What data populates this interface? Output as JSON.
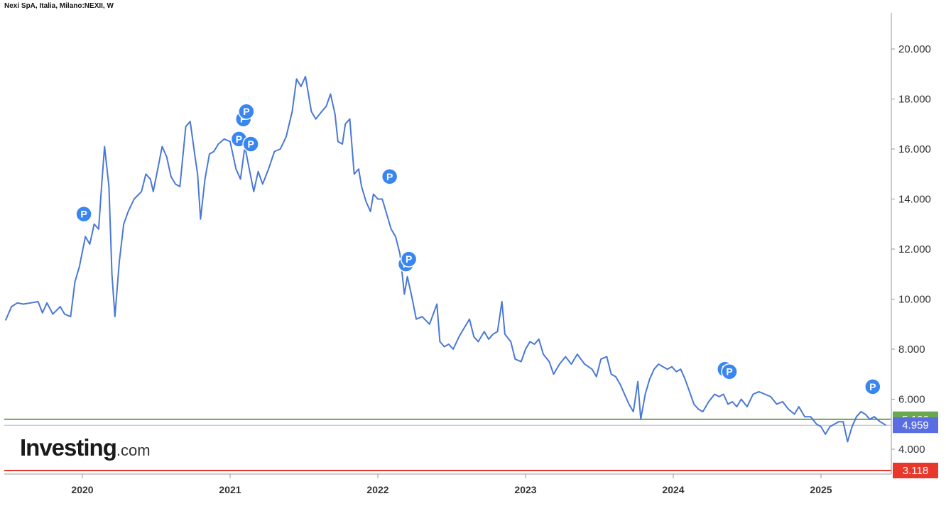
{
  "header": {
    "title": "Nexi SpA, Italia, Milano:NEXII, W"
  },
  "logo": {
    "main": "Investing",
    "suffix": ".com"
  },
  "colors": {
    "line": "#4a78d6",
    "green": "#6aa84f",
    "red": "#e8382c",
    "blue_badge": "#5b6ee1",
    "marker": "#3a86f0"
  },
  "chart_data": {
    "type": "line",
    "title": "Nexi SpA, Italia, Milano:NEXII, W",
    "xlabel": "",
    "ylabel": "",
    "x_ticks": [
      "2020",
      "2021",
      "2022",
      "2023",
      "2024",
      "2025"
    ],
    "y_ticks": [
      "4.000",
      "6.000",
      "8.000",
      "10.000",
      "12.000",
      "14.000",
      "16.000",
      "18.000",
      "20.000"
    ],
    "ylim": [
      3.0,
      21.3
    ],
    "xlim": [
      2019.48,
      2025.5
    ],
    "grid": false,
    "series": [
      {
        "values": [
          [
            2019.48,
            9.15
          ],
          [
            2019.52,
            9.7
          ],
          [
            2019.56,
            9.85
          ],
          [
            2019.6,
            9.8
          ],
          [
            2019.65,
            9.85
          ],
          [
            2019.7,
            9.9
          ],
          [
            2019.73,
            9.45
          ],
          [
            2019.76,
            9.85
          ],
          [
            2019.8,
            9.4
          ],
          [
            2019.85,
            9.7
          ],
          [
            2019.88,
            9.4
          ],
          [
            2019.92,
            9.3
          ],
          [
            2019.95,
            10.7
          ],
          [
            2019.98,
            11.3
          ],
          [
            2020.02,
            12.5
          ],
          [
            2020.05,
            12.2
          ],
          [
            2020.08,
            13.0
          ],
          [
            2020.11,
            12.8
          ],
          [
            2020.13,
            14.5
          ],
          [
            2020.15,
            16.1
          ],
          [
            2020.18,
            14.5
          ],
          [
            2020.2,
            11.0
          ],
          [
            2020.22,
            9.3
          ],
          [
            2020.25,
            11.5
          ],
          [
            2020.28,
            13.0
          ],
          [
            2020.31,
            13.5
          ],
          [
            2020.35,
            14.0
          ],
          [
            2020.4,
            14.3
          ],
          [
            2020.43,
            15.0
          ],
          [
            2020.46,
            14.8
          ],
          [
            2020.48,
            14.3
          ],
          [
            2020.51,
            15.2
          ],
          [
            2020.54,
            16.1
          ],
          [
            2020.57,
            15.7
          ],
          [
            2020.6,
            14.9
          ],
          [
            2020.63,
            14.6
          ],
          [
            2020.66,
            14.5
          ],
          [
            2020.7,
            16.9
          ],
          [
            2020.73,
            17.1
          ],
          [
            2020.76,
            15.8
          ],
          [
            2020.78,
            15.0
          ],
          [
            2020.8,
            13.2
          ],
          [
            2020.83,
            14.8
          ],
          [
            2020.86,
            15.8
          ],
          [
            2020.89,
            15.9
          ],
          [
            2020.92,
            16.2
          ],
          [
            2020.96,
            16.4
          ],
          [
            2021.0,
            16.3
          ],
          [
            2021.04,
            15.2
          ],
          [
            2021.07,
            14.8
          ],
          [
            2021.1,
            16.1
          ],
          [
            2021.13,
            15.2
          ],
          [
            2021.16,
            14.3
          ],
          [
            2021.19,
            15.1
          ],
          [
            2021.22,
            14.6
          ],
          [
            2021.26,
            15.2
          ],
          [
            2021.3,
            15.9
          ],
          [
            2021.34,
            16.0
          ],
          [
            2021.38,
            16.5
          ],
          [
            2021.42,
            17.5
          ],
          [
            2021.45,
            18.8
          ],
          [
            2021.48,
            18.5
          ],
          [
            2021.51,
            18.9
          ],
          [
            2021.55,
            17.5
          ],
          [
            2021.58,
            17.2
          ],
          [
            2021.62,
            17.5
          ],
          [
            2021.65,
            17.7
          ],
          [
            2021.68,
            18.2
          ],
          [
            2021.71,
            17.4
          ],
          [
            2021.73,
            16.3
          ],
          [
            2021.76,
            16.2
          ],
          [
            2021.78,
            17.0
          ],
          [
            2021.81,
            17.2
          ],
          [
            2021.84,
            15.0
          ],
          [
            2021.87,
            15.2
          ],
          [
            2021.89,
            14.5
          ],
          [
            2021.92,
            13.9
          ],
          [
            2021.95,
            13.5
          ],
          [
            2021.97,
            14.2
          ],
          [
            2022.0,
            14.0
          ],
          [
            2022.03,
            14.0
          ],
          [
            2022.06,
            13.4
          ],
          [
            2022.09,
            12.8
          ],
          [
            2022.12,
            12.5
          ],
          [
            2022.15,
            11.8
          ],
          [
            2022.18,
            10.2
          ],
          [
            2022.2,
            10.9
          ],
          [
            2022.23,
            10.1
          ],
          [
            2022.26,
            9.2
          ],
          [
            2022.3,
            9.3
          ],
          [
            2022.35,
            9.0
          ],
          [
            2022.4,
            9.8
          ],
          [
            2022.42,
            8.3
          ],
          [
            2022.45,
            8.1
          ],
          [
            2022.48,
            8.2
          ],
          [
            2022.51,
            8.0
          ],
          [
            2022.55,
            8.5
          ],
          [
            2022.58,
            8.8
          ],
          [
            2022.62,
            9.2
          ],
          [
            2022.65,
            8.5
          ],
          [
            2022.68,
            8.3
          ],
          [
            2022.72,
            8.7
          ],
          [
            2022.75,
            8.4
          ],
          [
            2022.78,
            8.6
          ],
          [
            2022.81,
            8.7
          ],
          [
            2022.84,
            9.9
          ],
          [
            2022.86,
            8.6
          ],
          [
            2022.9,
            8.3
          ],
          [
            2022.93,
            7.6
          ],
          [
            2022.97,
            7.5
          ],
          [
            2023.0,
            8.0
          ],
          [
            2023.03,
            8.3
          ],
          [
            2023.06,
            8.2
          ],
          [
            2023.09,
            8.4
          ],
          [
            2023.12,
            7.8
          ],
          [
            2023.16,
            7.5
          ],
          [
            2023.19,
            7.0
          ],
          [
            2023.23,
            7.4
          ],
          [
            2023.27,
            7.7
          ],
          [
            2023.31,
            7.4
          ],
          [
            2023.35,
            7.8
          ],
          [
            2023.4,
            7.4
          ],
          [
            2023.45,
            7.2
          ],
          [
            2023.48,
            6.9
          ],
          [
            2023.51,
            7.6
          ],
          [
            2023.55,
            7.7
          ],
          [
            2023.58,
            7.0
          ],
          [
            2023.61,
            6.9
          ],
          [
            2023.64,
            6.6
          ],
          [
            2023.67,
            6.2
          ],
          [
            2023.7,
            5.8
          ],
          [
            2023.73,
            5.5
          ],
          [
            2023.76,
            6.7
          ],
          [
            2023.78,
            5.2
          ],
          [
            2023.81,
            6.2
          ],
          [
            2023.84,
            6.8
          ],
          [
            2023.87,
            7.2
          ],
          [
            2023.9,
            7.4
          ],
          [
            2023.93,
            7.3
          ],
          [
            2023.96,
            7.2
          ],
          [
            2023.99,
            7.3
          ],
          [
            2024.02,
            7.1
          ],
          [
            2024.05,
            7.2
          ],
          [
            2024.08,
            6.8
          ],
          [
            2024.11,
            6.3
          ],
          [
            2024.14,
            5.8
          ],
          [
            2024.17,
            5.6
          ],
          [
            2024.2,
            5.5
          ],
          [
            2024.24,
            5.9
          ],
          [
            2024.28,
            6.2
          ],
          [
            2024.31,
            6.1
          ],
          [
            2024.34,
            6.2
          ],
          [
            2024.37,
            5.8
          ],
          [
            2024.4,
            5.9
          ],
          [
            2024.43,
            5.7
          ],
          [
            2024.46,
            6.0
          ],
          [
            2024.5,
            5.7
          ],
          [
            2024.54,
            6.2
          ],
          [
            2024.58,
            6.3
          ],
          [
            2024.62,
            6.2
          ],
          [
            2024.66,
            6.1
          ],
          [
            2024.7,
            5.8
          ],
          [
            2024.74,
            5.9
          ],
          [
            2024.78,
            5.6
          ],
          [
            2024.82,
            5.4
          ],
          [
            2024.85,
            5.7
          ],
          [
            2024.89,
            5.3
          ],
          [
            2024.93,
            5.3
          ],
          [
            2024.97,
            5.0
          ],
          [
            2025.0,
            4.9
          ],
          [
            2025.03,
            4.6
          ],
          [
            2025.06,
            4.9
          ],
          [
            2025.09,
            5.0
          ],
          [
            2025.12,
            5.1
          ],
          [
            2025.15,
            5.1
          ],
          [
            2025.18,
            4.3
          ],
          [
            2025.21,
            4.9
          ],
          [
            2025.24,
            5.3
          ],
          [
            2025.27,
            5.5
          ],
          [
            2025.3,
            5.4
          ],
          [
            2025.33,
            5.2
          ],
          [
            2025.36,
            5.3
          ],
          [
            2025.4,
            5.1
          ],
          [
            2025.44,
            4.96
          ]
        ]
      }
    ],
    "price_markers": [
      {
        "year": 2020.01,
        "value": 13.4,
        "label": "P"
      },
      {
        "year": 2021.06,
        "value": 16.4,
        "label": "P"
      },
      {
        "year": 2021.09,
        "value": 17.2,
        "label": "P"
      },
      {
        "year": 2021.11,
        "value": 17.5,
        "label": "P"
      },
      {
        "year": 2021.14,
        "value": 16.2,
        "label": "P"
      },
      {
        "year": 2022.08,
        "value": 14.9,
        "label": "P"
      },
      {
        "year": 2022.19,
        "value": 11.4,
        "label": "P"
      },
      {
        "year": 2022.21,
        "value": 11.6,
        "label": "P"
      },
      {
        "year": 2024.35,
        "value": 7.2,
        "label": "P"
      },
      {
        "year": 2024.38,
        "value": 7.1,
        "label": "P"
      },
      {
        "year": 2025.35,
        "value": 6.5,
        "label": "P"
      }
    ],
    "horizontal_lines": [
      {
        "value": 5.196,
        "label": "5.196",
        "color": "#6aa84f",
        "kind": "solid"
      },
      {
        "value": 4.959,
        "label": "4.959",
        "color": "#5b6ee1",
        "kind": "thin"
      },
      {
        "value": 3.118,
        "label": "3.118",
        "color": "#e8382c",
        "kind": "solid"
      }
    ]
  }
}
